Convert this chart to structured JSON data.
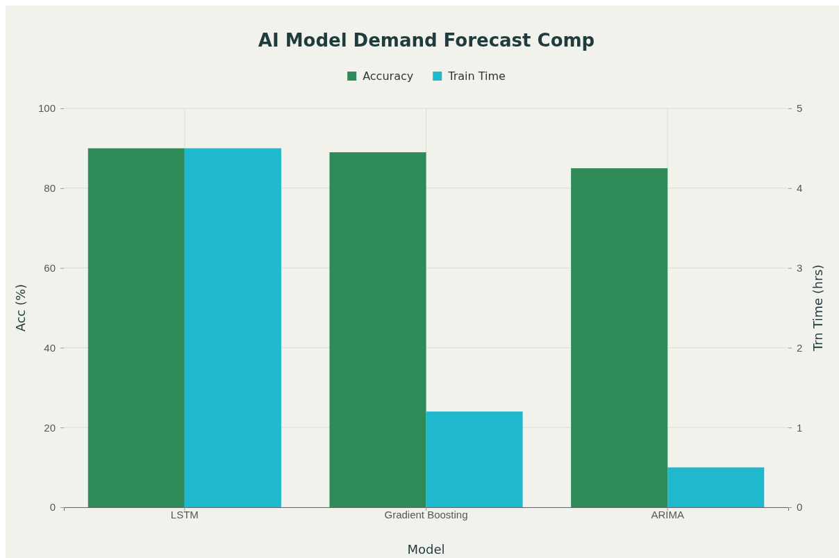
{
  "chart_data": {
    "type": "bar",
    "title": "AI Model Demand Forecast Comp",
    "xlabel": "Model",
    "ylabel": "Acc (%)",
    "y2label": "Trn Time (hrs)",
    "categories": [
      "LSTM",
      "Gradient Boosting",
      "ARIMA"
    ],
    "series": [
      {
        "name": "Accuracy",
        "color": "#2e8b57",
        "values": [
          90,
          89,
          85
        ]
      },
      {
        "name": "Train Time",
        "color": "#1fb8cd",
        "values": [
          4.5,
          1.2,
          0.5
        ],
        "axis": "y2"
      }
    ],
    "ylim": [
      0,
      100
    ],
    "yticks": [
      0,
      20,
      40,
      60,
      80,
      100
    ],
    "y2lim": [
      0,
      5
    ],
    "y2ticks": [
      0,
      1,
      2,
      3,
      4,
      5
    ],
    "grid": true,
    "legend": "top"
  }
}
